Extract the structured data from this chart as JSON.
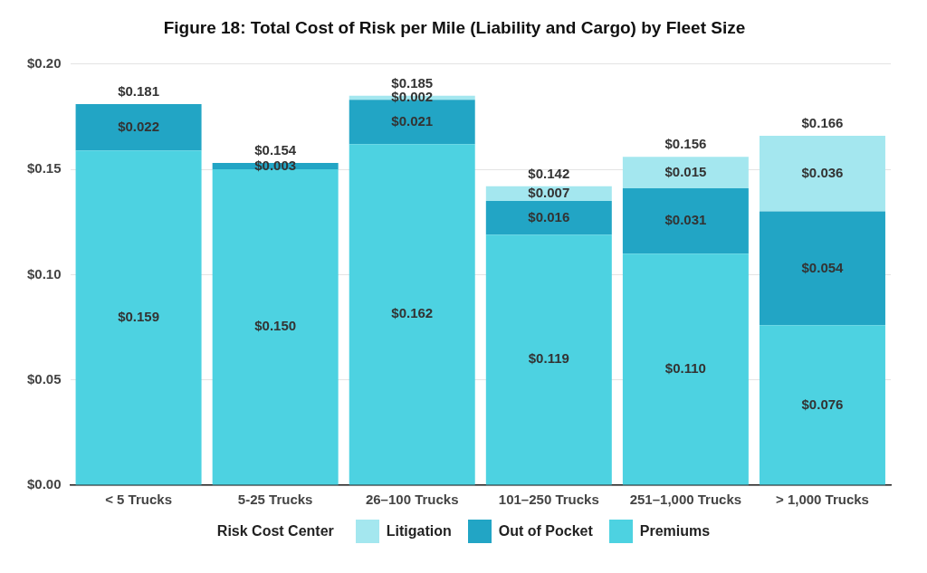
{
  "chart_data": {
    "type": "bar",
    "title": "Figure 18: Total Cost of Risk per Mile (Liability and Cargo) by Fleet Size",
    "legend_title": "Risk Cost Center",
    "categories": [
      "< 5 Trucks",
      "5-25 Trucks",
      "26–100 Trucks",
      "101–250 Trucks",
      "251–1,000 Trucks",
      "> 1,000 Trucks"
    ],
    "stacked": true,
    "legend": "bottom",
    "grid": "y",
    "ylim": [
      0,
      0.2
    ],
    "yticks": [
      {
        "value": 0,
        "label": "$0.00"
      },
      {
        "value": 0.05,
        "label": "$0.05"
      },
      {
        "value": 0.1,
        "label": "$0.10"
      },
      {
        "value": 0.15,
        "label": "$0.15"
      },
      {
        "value": 0.2,
        "label": "$0.20"
      }
    ],
    "series": [
      {
        "name": "Premiums",
        "color": "#4dd2e1",
        "values": [
          0.159,
          0.15,
          0.162,
          0.119,
          0.11,
          0.076
        ],
        "value_labels": [
          "$0.159",
          "$0.150",
          "$0.162",
          "$0.119",
          "$0.110",
          "$0.076"
        ]
      },
      {
        "name": "Out of Pocket",
        "color": "#22a5c5",
        "values": [
          0.022,
          0.003,
          0.021,
          0.016,
          0.031,
          0.054
        ],
        "value_labels": [
          "$0.022",
          "$0.003",
          "$0.021",
          "$0.016",
          "$0.031",
          "$0.054"
        ]
      },
      {
        "name": "Litigation",
        "color": "#a4e7ef",
        "values": [
          null,
          null,
          0.002,
          0.007,
          0.015,
          0.036
        ],
        "value_labels": [
          null,
          null,
          "$0.002",
          "$0.007",
          "$0.015",
          "$0.036"
        ]
      }
    ],
    "totals": [
      "$0.181",
      "$0.154",
      "$0.185",
      "$0.142",
      "$0.156",
      "$0.166"
    ]
  }
}
